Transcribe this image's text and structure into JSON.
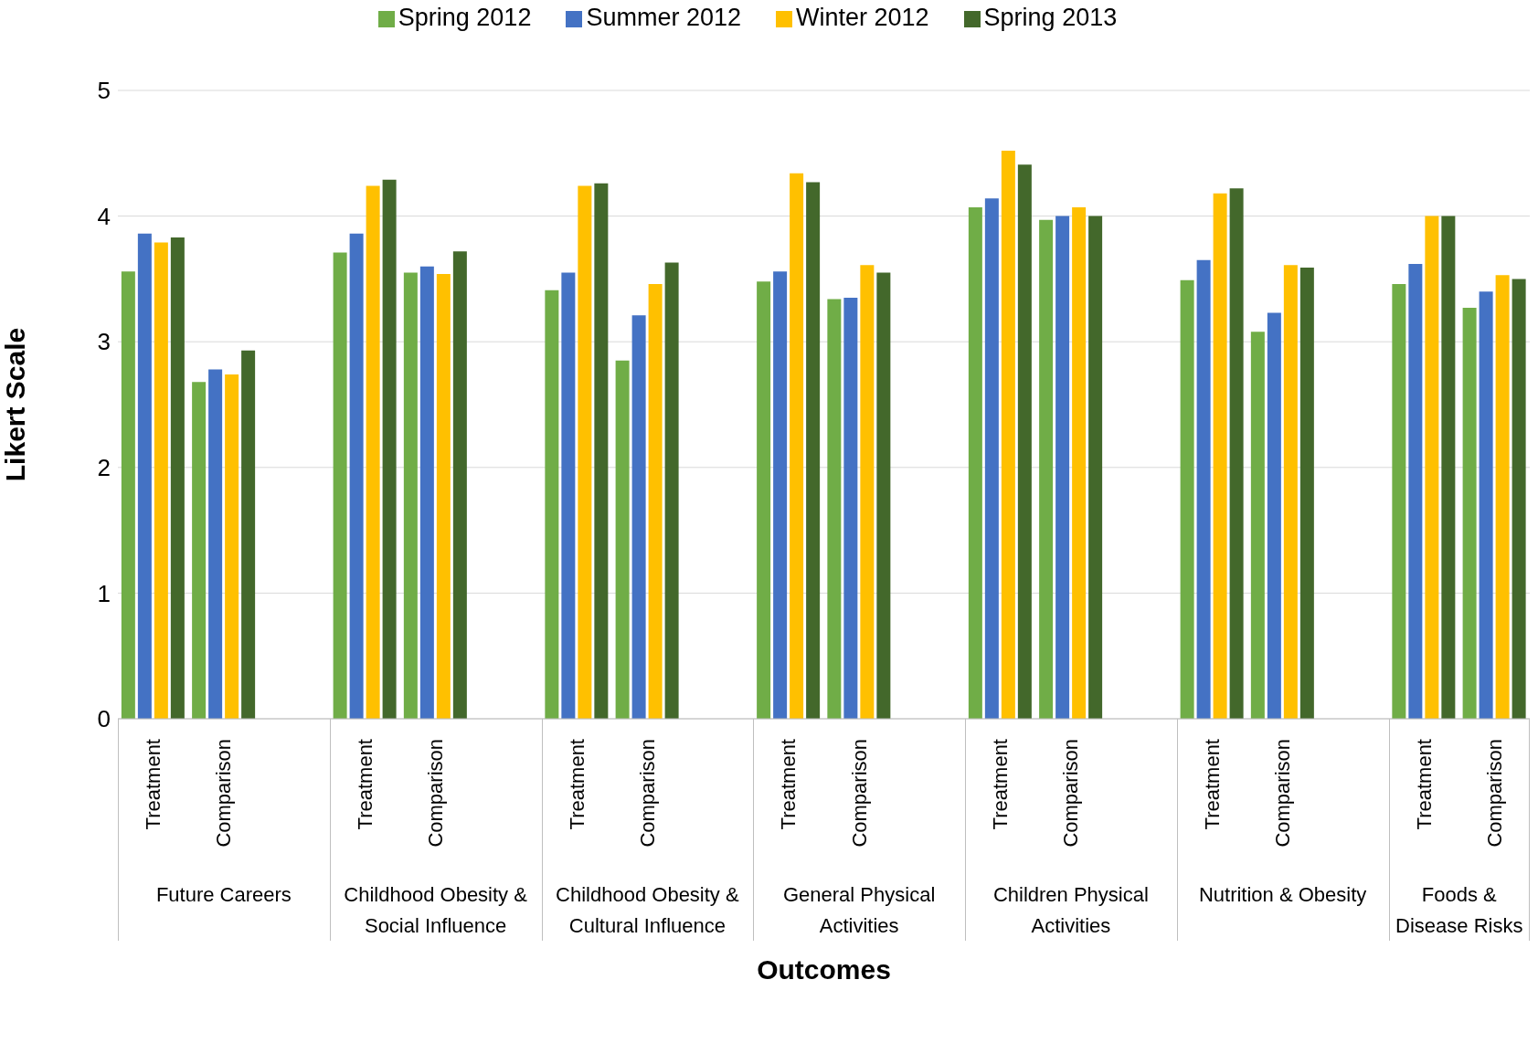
{
  "chart_data": {
    "type": "bar",
    "xlabel": "Outcomes",
    "ylabel": "Likert Scale",
    "categories": [
      "Treatment",
      "Comparison",
      null,
      "Treatment",
      "Comparison",
      null,
      "Treatment",
      "Comparison",
      null,
      "Treatment",
      "Comparison",
      null,
      "Treatment",
      "Comparison",
      null,
      "Treatment",
      "Comparison",
      null,
      "Treatment",
      "Comparison"
    ],
    "annotations": [
      "Future Careers",
      "Childhood Obesity & Social Influence",
      "Childhood Obesity & Cultural Influence",
      "General Physical Activities",
      "Children Physical Activities",
      "Nutrition & Obesity",
      "Foods & Disease Risks"
    ],
    "series": [
      {
        "name": "Spring 2012",
        "color": "#70ad47",
        "values": [
          3.56,
          2.68,
          null,
          3.71,
          3.55,
          null,
          3.41,
          2.85,
          null,
          3.48,
          3.34,
          null,
          4.07,
          3.97,
          null,
          3.49,
          3.08,
          null,
          3.46,
          3.27
        ]
      },
      {
        "name": "Summer 2012",
        "color": "#4472c4",
        "values": [
          3.86,
          2.78,
          null,
          3.86,
          3.6,
          null,
          3.55,
          3.21,
          null,
          3.56,
          3.35,
          null,
          4.14,
          4.0,
          null,
          3.65,
          3.23,
          null,
          3.62,
          3.4
        ]
      },
      {
        "name": "Winter 2012",
        "color": "#ffc000",
        "values": [
          3.79,
          2.74,
          null,
          4.24,
          3.54,
          null,
          4.24,
          3.46,
          null,
          4.34,
          3.61,
          null,
          4.52,
          4.07,
          null,
          4.18,
          3.61,
          null,
          4.0,
          3.53
        ]
      },
      {
        "name": "Spring 2013",
        "color": "#43682b",
        "values": [
          3.83,
          2.93,
          null,
          4.29,
          3.72,
          null,
          4.26,
          3.63,
          null,
          4.27,
          3.55,
          null,
          4.41,
          4.0,
          null,
          4.22,
          3.59,
          null,
          4.0,
          3.5
        ]
      }
    ],
    "ylim": [
      0,
      5
    ],
    "yticks": [
      0,
      1,
      2,
      3,
      4,
      5
    ],
    "grid": "y",
    "legend": "top"
  }
}
